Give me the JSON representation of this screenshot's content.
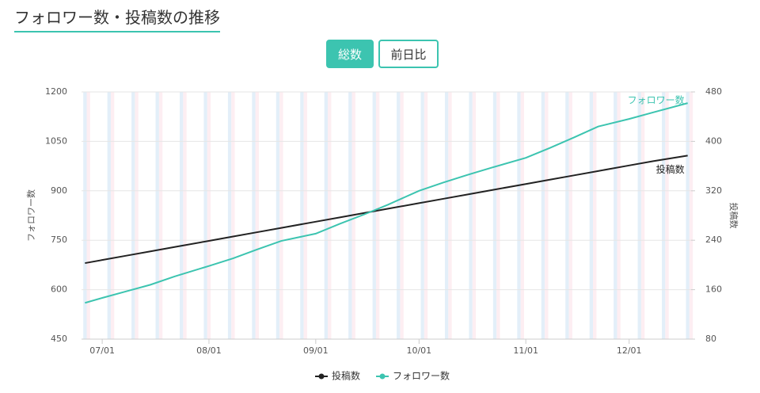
{
  "header": {
    "title": "フォロワー数・投稿数の推移",
    "buttons": [
      "総数",
      "前日比"
    ]
  },
  "chart_data": {
    "type": "line",
    "x": [
      "06/26",
      "07/01",
      "07/08",
      "07/15",
      "07/22",
      "08/01",
      "08/08",
      "08/15",
      "08/22",
      "09/01",
      "09/08",
      "09/15",
      "09/22",
      "10/01",
      "10/08",
      "10/15",
      "10/22",
      "11/01",
      "11/08",
      "11/15",
      "11/22",
      "12/01",
      "12/08",
      "12/18"
    ],
    "xlim": [
      "06/25",
      "12/19"
    ],
    "xticks": [
      "07/01",
      "08/01",
      "09/01",
      "10/01",
      "11/01",
      "12/01"
    ],
    "y_label": "フォロワー数",
    "y2_label": "投稿数",
    "ylim": [
      450,
      1200
    ],
    "yticks": [
      450,
      600,
      750,
      900,
      1050,
      1200
    ],
    "y2lim": [
      80,
      480
    ],
    "y2ticks": [
      80,
      160,
      240,
      320,
      400,
      480
    ],
    "grid": true,
    "series": [
      {
        "name": "投稿数",
        "color": "#222222",
        "axis": "y2",
        "values": [
          203,
          208,
          215,
          222,
          229,
          239,
          246,
          253,
          260,
          270,
          277,
          284,
          291,
          300,
          307,
          314,
          321,
          331,
          338,
          345,
          352,
          361,
          368,
          377
        ]
      },
      {
        "name": "フォロワー数",
        "color": "#3cc4b0",
        "axis": "y",
        "values": [
          560,
          575,
          595,
          615,
          640,
          672,
          695,
          722,
          748,
          770,
          800,
          828,
          858,
          900,
          925,
          948,
          970,
          1000,
          1030,
          1062,
          1095,
          1118,
          1138,
          1166
        ]
      }
    ]
  }
}
